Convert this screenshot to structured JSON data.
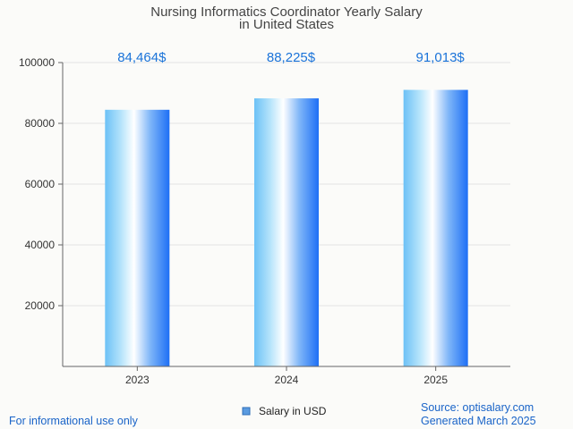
{
  "chart_data": {
    "type": "bar",
    "title": "Nursing Informatics Coordinator Yearly Salary",
    "subtitle": "in United States",
    "categories": [
      "2023",
      "2024",
      "2025"
    ],
    "series": [
      {
        "name": "Salary in USD",
        "values": [
          84464,
          88225,
          91013
        ]
      }
    ],
    "data_labels": [
      "84,464$",
      "88,225$",
      "91,013$"
    ],
    "ylim": [
      0,
      100000
    ],
    "yticks": [
      "20000",
      "40000",
      "60000",
      "80000",
      "100000"
    ],
    "ytick_values": [
      20000,
      40000,
      60000,
      80000,
      100000
    ],
    "xlabel": "",
    "ylabel": "",
    "grid": true,
    "legend": "bottom-center",
    "colors": {
      "bar_edge": "#1e6ff5",
      "bar_light": "#ffffff",
      "bar_left": "#7cc7f7",
      "label": "#1a73d9"
    }
  },
  "footer": {
    "left": "For informational use only",
    "source": "Source: optisalary.com",
    "generated": "Generated March 2025"
  }
}
